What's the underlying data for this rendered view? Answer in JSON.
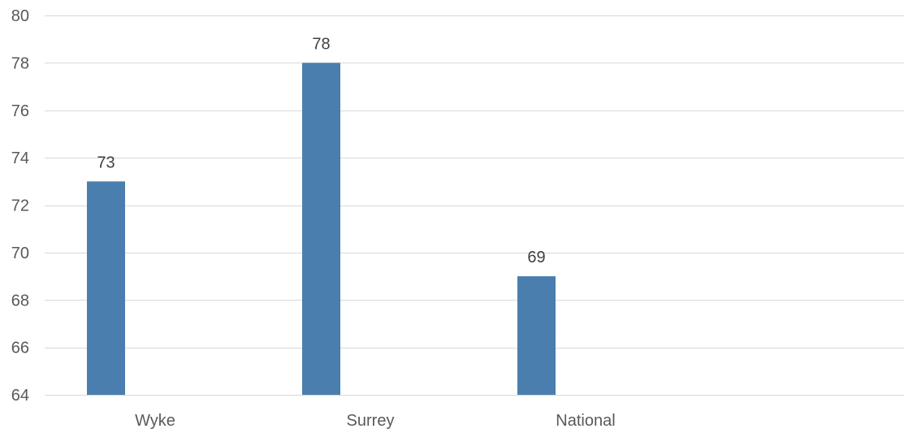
{
  "colors": {
    "bar": "#4a7eae",
    "grid": "#d9d9d9",
    "tick_text": "#595959",
    "label_text": "#404040",
    "background": "#ffffff"
  },
  "chart_data": {
    "type": "bar",
    "title": "",
    "xlabel": "",
    "ylabel": "",
    "categories": [
      "Wyke",
      "Surrey",
      "National"
    ],
    "values": [
      73,
      78,
      69
    ],
    "ylim": [
      64,
      80
    ],
    "yticks": [
      64,
      66,
      68,
      70,
      72,
      74,
      76,
      78,
      80
    ],
    "grid": true,
    "legend": "none",
    "data_labels": [
      "73",
      "78",
      "69"
    ]
  }
}
